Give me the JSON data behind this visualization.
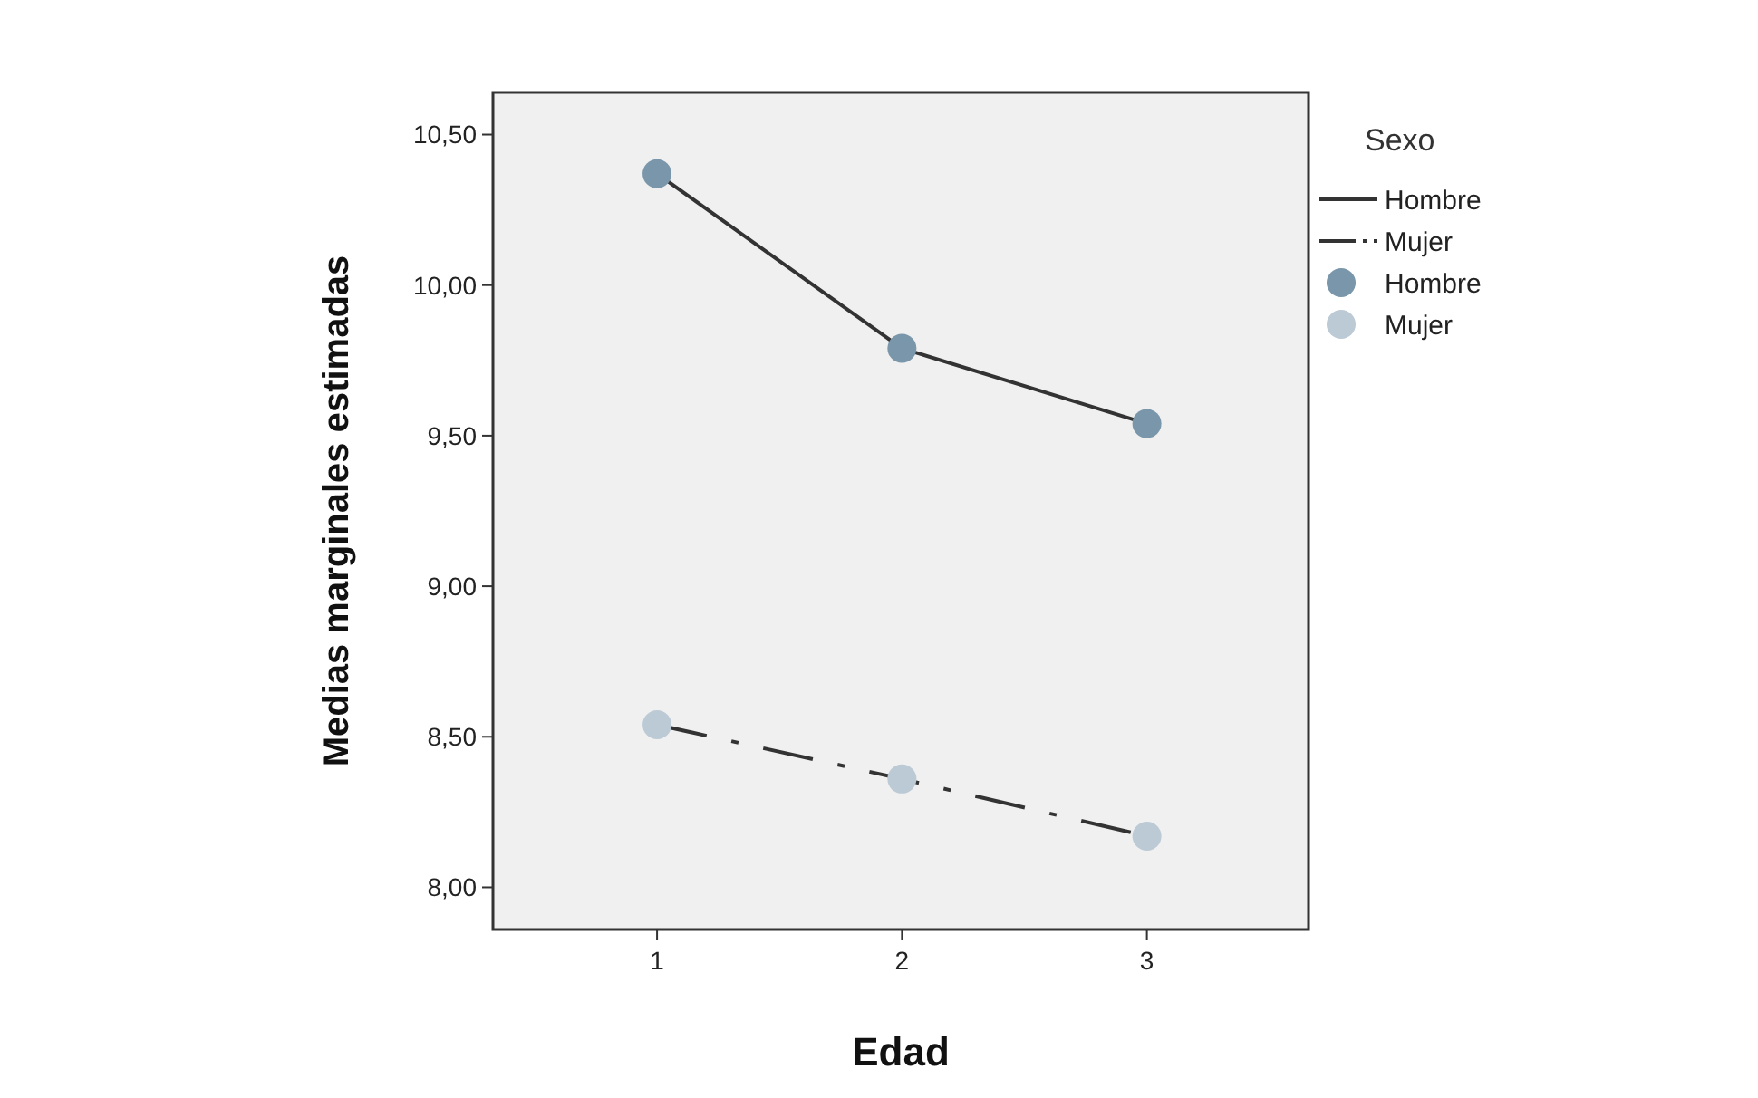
{
  "chart_data": {
    "type": "line",
    "xlabel": "Edad",
    "ylabel": "Medias marginales estimadas",
    "legend_title": "Sexo",
    "legend": "right",
    "grid": false,
    "x": [
      1,
      2,
      3
    ],
    "xlim": [
      0.33,
      3.66
    ],
    "xticks": [
      1,
      2,
      3
    ],
    "ylim": [
      7.86,
      10.64
    ],
    "yticks": [
      {
        "value": 8,
        "label": "8,00"
      },
      {
        "value": 8.5,
        "label": "8,50"
      },
      {
        "value": 9,
        "label": "9,00"
      },
      {
        "value": 9.5,
        "label": "9,50"
      },
      {
        "value": 10,
        "label": "10,00"
      },
      {
        "value": 10.5,
        "label": "10,50"
      }
    ],
    "series": [
      {
        "name": "Hombre",
        "marker": "none",
        "line_style": "solid",
        "color": "#333333",
        "values": [
          10.37,
          9.79,
          9.54
        ]
      },
      {
        "name": "Mujer",
        "marker": "none",
        "line_style": "dashed",
        "color": "#333333",
        "values": [
          8.54,
          8.36,
          8.17
        ]
      },
      {
        "name": "Hombre",
        "type": "scatter",
        "marker": "circle",
        "color": "#7a96aa",
        "values": [
          10.37,
          9.79,
          9.54
        ]
      },
      {
        "name": "Mujer",
        "type": "scatter",
        "marker": "circle",
        "color": "#bccad5",
        "values": [
          8.54,
          8.36,
          8.17
        ]
      }
    ]
  }
}
